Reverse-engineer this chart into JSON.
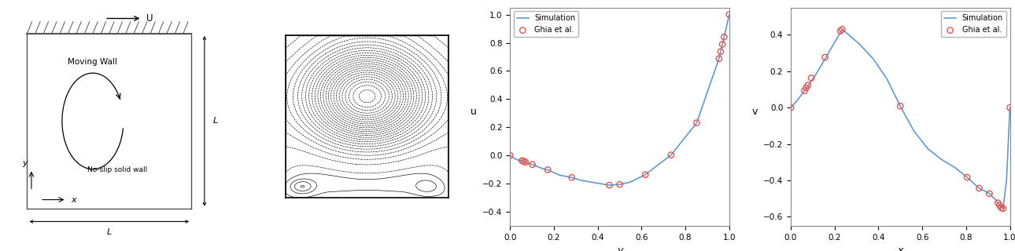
{
  "schematic": {
    "moving_wall_text": "Moving Wall",
    "no_slip_text": "No-slip solid wall",
    "U_label": "U",
    "L_label_bottom": "L",
    "L_label_right": "L",
    "x_label": "x",
    "y_label": "y"
  },
  "u_plot": {
    "ylabel": "u",
    "xlabel": "y",
    "xlim": [
      0.0,
      1.0
    ],
    "ylim": [
      -0.5,
      1.05
    ],
    "yticks": [
      -0.4,
      -0.2,
      0.0,
      0.2,
      0.4,
      0.6,
      0.8,
      1.0
    ],
    "xticks": [
      0.0,
      0.2,
      0.4,
      0.6,
      0.8,
      1.0
    ],
    "ghia_y": [
      0.0,
      0.0547,
      0.0625,
      0.0703,
      0.1016,
      0.1719,
      0.2813,
      0.4531,
      0.5,
      0.6172,
      0.7344,
      0.8516,
      0.9531,
      0.9609,
      0.9688,
      0.9766,
      1.0
    ],
    "ghia_u": [
      0.0,
      -0.03717,
      -0.04192,
      -0.04775,
      -0.06434,
      -0.1015,
      -0.15662,
      -0.2109,
      -0.20581,
      -0.13641,
      0.00332,
      0.23151,
      0.68717,
      0.73722,
      0.78871,
      0.84123,
      1.0
    ],
    "sim_y": [
      0.0,
      0.0078,
      0.0156,
      0.0234,
      0.0313,
      0.0469,
      0.0547,
      0.0625,
      0.0703,
      0.0781,
      0.0938,
      0.1016,
      0.1172,
      0.125,
      0.1563,
      0.1719,
      0.2031,
      0.2266,
      0.2813,
      0.3281,
      0.4531,
      0.5,
      0.5469,
      0.6172,
      0.7344,
      0.8516,
      0.9531,
      0.9609,
      0.9688,
      0.9766,
      0.9844,
      1.0
    ],
    "sim_u": [
      0.0,
      -0.008,
      -0.016,
      -0.024,
      -0.03,
      -0.037,
      -0.038,
      -0.042,
      -0.048,
      -0.053,
      -0.062,
      -0.064,
      -0.074,
      -0.079,
      -0.098,
      -0.102,
      -0.124,
      -0.14,
      -0.157,
      -0.178,
      -0.211,
      -0.206,
      -0.19,
      -0.136,
      0.003,
      0.232,
      0.687,
      0.737,
      0.789,
      0.841,
      0.893,
      1.0
    ],
    "legend_sim": "Simulation",
    "legend_ghia": "Ghia et al.",
    "sim_color": "#5b9bd5",
    "ghia_color": "#e8534a"
  },
  "v_plot": {
    "ylabel": "v",
    "xlabel": "x",
    "xlim": [
      0.0,
      1.0
    ],
    "ylim": [
      -0.65,
      0.55
    ],
    "yticks": [
      -0.6,
      -0.4,
      -0.2,
      0.0,
      0.2,
      0.4
    ],
    "xticks": [
      0.0,
      0.2,
      0.4,
      0.6,
      0.8,
      1.0
    ],
    "ghia_x": [
      0.0,
      0.0625,
      0.0703,
      0.0781,
      0.0938,
      0.1563,
      0.2266,
      0.2344,
      0.5,
      0.8047,
      0.8594,
      0.9063,
      0.9453,
      0.9531,
      0.9609,
      0.9688,
      1.0
    ],
    "ghia_v": [
      0.0,
      0.09233,
      0.10891,
      0.12326,
      0.16256,
      0.27669,
      0.42093,
      0.43015,
      0.00831,
      -0.38289,
      -0.44307,
      -0.47242,
      -0.52347,
      -0.53705,
      -0.55069,
      -0.55408,
      0.0
    ],
    "sim_x": [
      0.0,
      0.0156,
      0.0313,
      0.0469,
      0.0625,
      0.0703,
      0.0781,
      0.0938,
      0.1094,
      0.1563,
      0.2266,
      0.2344,
      0.25,
      0.3125,
      0.375,
      0.4375,
      0.5,
      0.5625,
      0.625,
      0.6875,
      0.75,
      0.8047,
      0.8594,
      0.9063,
      0.9375,
      0.9453,
      0.9531,
      0.9609,
      0.9688,
      0.9844,
      1.0
    ],
    "sim_v": [
      0.0,
      0.02,
      0.042,
      0.068,
      0.092,
      0.102,
      0.118,
      0.148,
      0.172,
      0.267,
      0.414,
      0.43,
      0.415,
      0.35,
      0.27,
      0.16,
      0.008,
      -0.13,
      -0.225,
      -0.285,
      -0.33,
      -0.383,
      -0.443,
      -0.472,
      -0.51,
      -0.523,
      -0.537,
      -0.551,
      -0.554,
      -0.4,
      0.0
    ],
    "legend_sim": "Simulation",
    "legend_ghia": "Ghia et al.",
    "sim_color": "#5b9bd5",
    "ghia_color": "#e8534a"
  }
}
